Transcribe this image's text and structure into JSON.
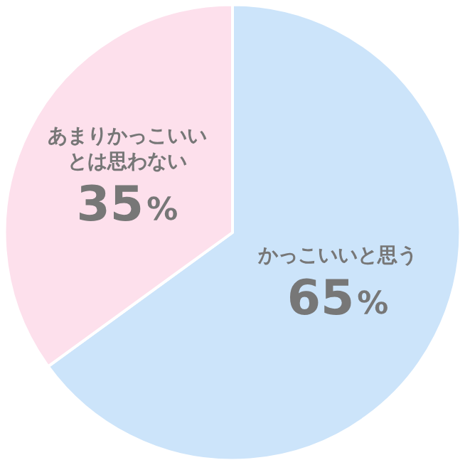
{
  "chart_data": {
    "type": "pie",
    "categories": [
      "かっこいいと思う",
      "あまりかっこいいとは思わない"
    ],
    "values": [
      65,
      35
    ],
    "colors": [
      "#cce4fa",
      "#fde0ec"
    ],
    "value_labels": [
      "65%",
      "35%"
    ],
    "legend": false
  }
}
